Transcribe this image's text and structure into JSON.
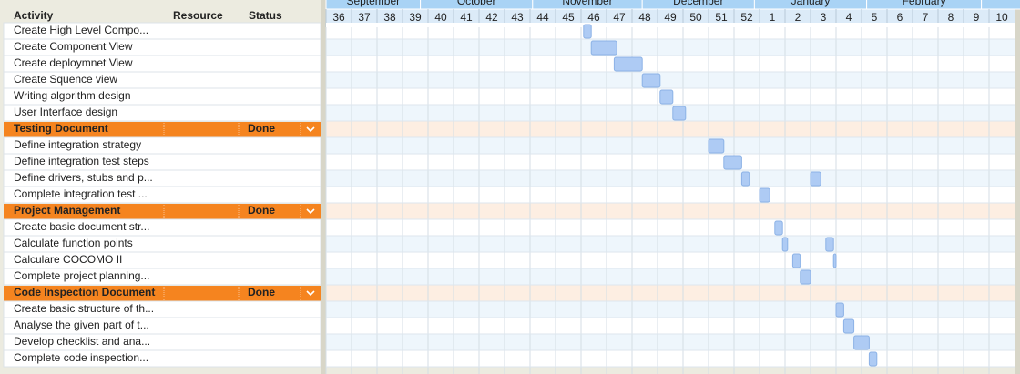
{
  "header": {
    "columns": [
      "Activity",
      "Resource",
      "Status"
    ]
  },
  "timeline": {
    "months": [
      {
        "label": "September",
        "start": 0,
        "end": 3.7
      },
      {
        "label": "October",
        "start": 3.7,
        "end": 8.1
      },
      {
        "label": "November",
        "start": 8.1,
        "end": 12.4
      },
      {
        "label": "December",
        "start": 12.4,
        "end": 16.8
      },
      {
        "label": "January",
        "start": 16.8,
        "end": 21.2
      },
      {
        "label": "February",
        "start": 21.2,
        "end": 25.7
      }
    ],
    "weeks": [
      36,
      37,
      38,
      39,
      40,
      41,
      42,
      43,
      44,
      45,
      46,
      47,
      48,
      49,
      50,
      51,
      52,
      1,
      2,
      3,
      4,
      5,
      6,
      7,
      8,
      9,
      10
    ]
  },
  "rows": [
    {
      "kind": "task",
      "name": "Create High Level Compo...",
      "bars": [
        {
          "start": 10.1,
          "end": 10.4
        }
      ]
    },
    {
      "kind": "task",
      "name": "Create Component View",
      "bars": [
        {
          "start": 10.4,
          "end": 11.4
        }
      ]
    },
    {
      "kind": "task",
      "name": "Create deploymnet View",
      "bars": [
        {
          "start": 11.3,
          "end": 12.4
        }
      ]
    },
    {
      "kind": "task",
      "name": "Create Squence view",
      "bars": [
        {
          "start": 12.4,
          "end": 13.1
        }
      ]
    },
    {
      "kind": "task",
      "name": "Writing algorithm design",
      "bars": [
        {
          "start": 13.1,
          "end": 13.6
        }
      ]
    },
    {
      "kind": "task",
      "name": "User Interface design",
      "bars": [
        {
          "start": 13.6,
          "end": 14.1
        }
      ]
    },
    {
      "kind": "group",
      "name": "Testing Document",
      "status": "Done"
    },
    {
      "kind": "task",
      "name": "Define integration strategy",
      "bars": [
        {
          "start": 15.0,
          "end": 15.6
        }
      ]
    },
    {
      "kind": "task",
      "name": "Define integration test steps",
      "bars": [
        {
          "start": 15.6,
          "end": 16.3
        }
      ]
    },
    {
      "kind": "task",
      "name": "Define drivers, stubs and p...",
      "bars": [
        {
          "start": 16.3,
          "end": 16.6
        },
        {
          "start": 19.0,
          "end": 19.4
        }
      ]
    },
    {
      "kind": "task",
      "name": "Complete integration test ...",
      "bars": [
        {
          "start": 17.0,
          "end": 17.4
        }
      ]
    },
    {
      "kind": "group",
      "name": "Project Management",
      "status": "Done"
    },
    {
      "kind": "task",
      "name": "Create basic document str...",
      "bars": [
        {
          "start": 17.6,
          "end": 17.9
        }
      ]
    },
    {
      "kind": "task",
      "name": "Calculate function points",
      "bars": [
        {
          "start": 17.9,
          "end": 18.1
        },
        {
          "start": 19.6,
          "end": 19.9
        }
      ]
    },
    {
      "kind": "task",
      "name": "Calculare COCOMO II",
      "bars": [
        {
          "start": 18.3,
          "end": 18.6
        },
        {
          "start": 19.9,
          "end": 20.0
        }
      ]
    },
    {
      "kind": "task",
      "name": "Complete project planning...",
      "bars": [
        {
          "start": 18.6,
          "end": 19.0
        }
      ]
    },
    {
      "kind": "group",
      "name": "Code Inspection Document",
      "status": "Done"
    },
    {
      "kind": "task",
      "name": "Create basic structure of th...",
      "bars": [
        {
          "start": 20.0,
          "end": 20.3
        }
      ]
    },
    {
      "kind": "task",
      "name": "Analyse the given part of t...",
      "bars": [
        {
          "start": 20.3,
          "end": 20.7
        }
      ]
    },
    {
      "kind": "task",
      "name": "Develop checklist and ana...",
      "bars": [
        {
          "start": 20.7,
          "end": 21.3
        }
      ]
    },
    {
      "kind": "task",
      "name": "Complete code inspection...",
      "bars": [
        {
          "start": 21.3,
          "end": 21.6
        }
      ]
    }
  ]
}
